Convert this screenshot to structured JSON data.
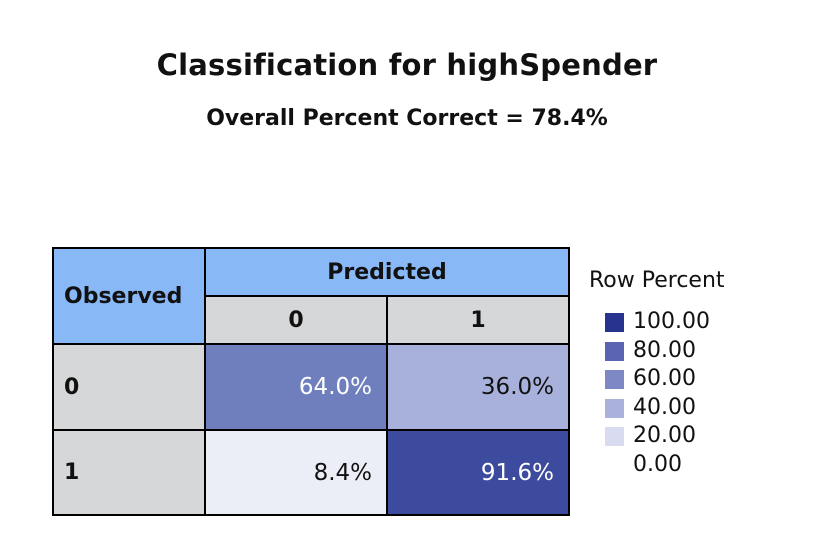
{
  "chart_data": {
    "type": "table",
    "title": "Classification for highSpender",
    "subtitle": "Overall Percent Correct = 78.4%",
    "row_header": "Observed",
    "column_group_header": "Predicted",
    "columns": [
      "0",
      "1"
    ],
    "rows": [
      {
        "label": "0",
        "values": [
          64.0,
          36.0
        ],
        "display": [
          "64.0%",
          "36.0%"
        ]
      },
      {
        "label": "1",
        "values": [
          8.4,
          91.6
        ],
        "display": [
          "8.4%",
          "91.6%"
        ]
      }
    ],
    "legend": {
      "title": "Row Percent",
      "items": [
        {
          "label": "100.00",
          "color": "#27338e"
        },
        {
          "label": "80.00",
          "color": "#5a64b0"
        },
        {
          "label": "60.00",
          "color": "#7e88c4"
        },
        {
          "label": "40.00",
          "color": "#aab2db"
        },
        {
          "label": "20.00",
          "color": "#d9dcf0"
        },
        {
          "label": "0.00",
          "color": ""
        }
      ]
    },
    "cell_colors": [
      [
        "#6f7fbd",
        "#a8b1db"
      ],
      [
        "#eceef7",
        "#3c4b9e"
      ]
    ],
    "header_colors": {
      "blue": "#88b9f6",
      "grey": "#d6d7d8"
    }
  }
}
